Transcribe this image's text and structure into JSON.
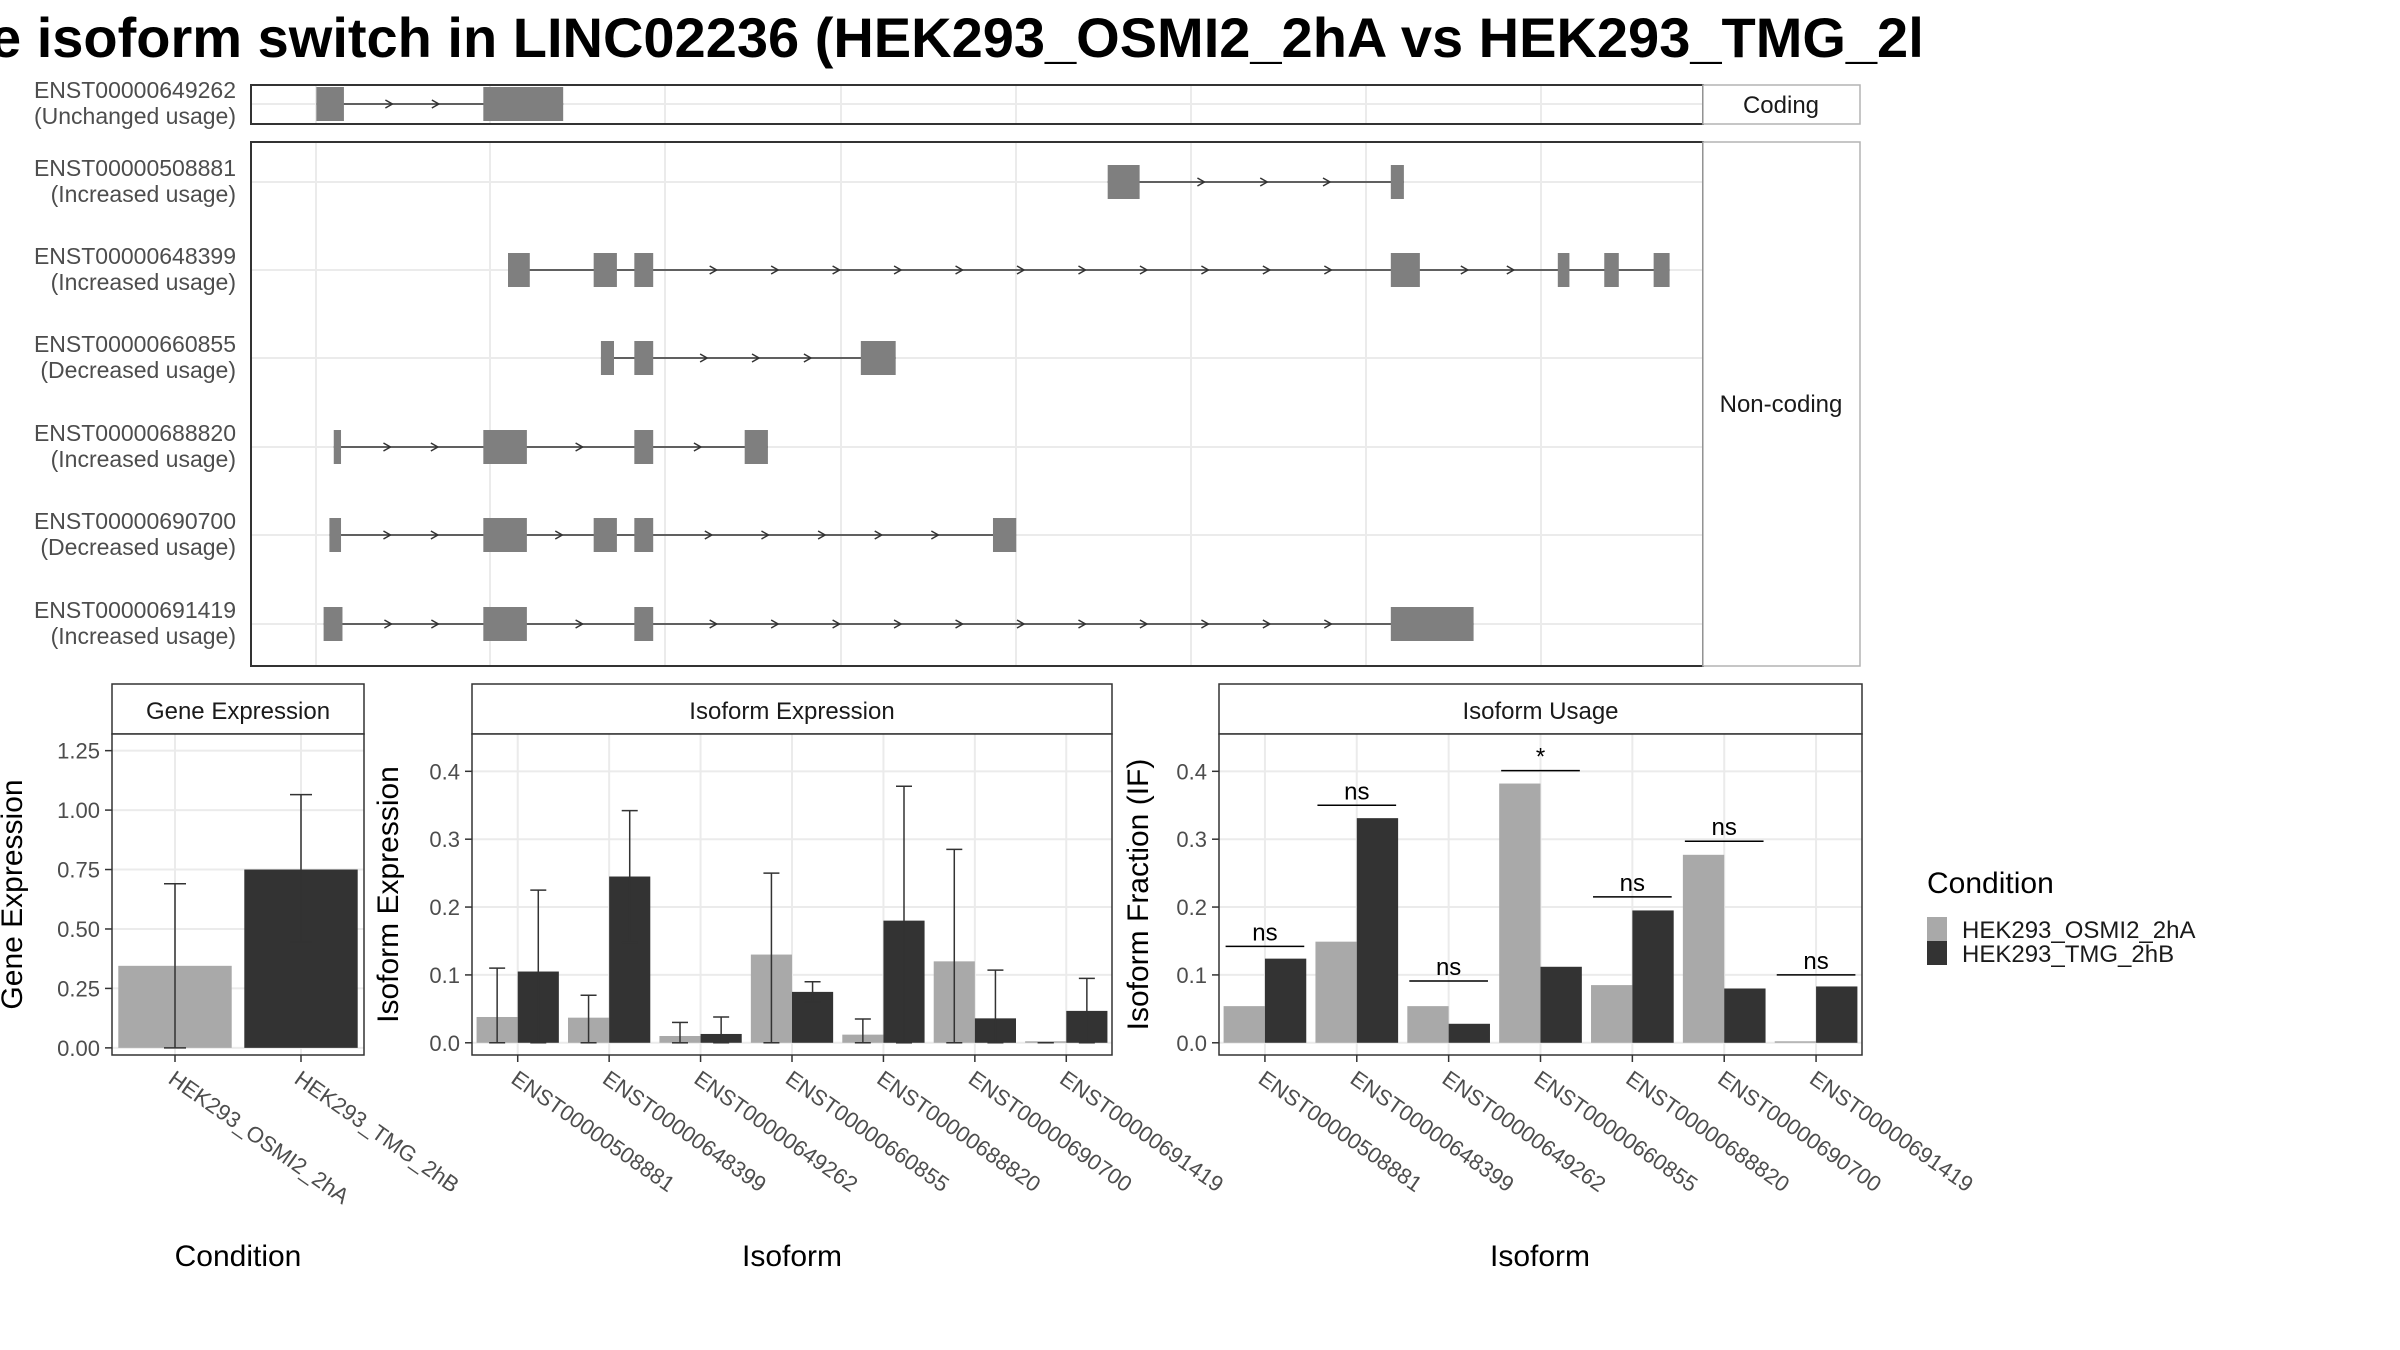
{
  "title": "e isoform switch in LINC02236 (HEK293_OSMI2_2hA vs HEK293_TMG_2l",
  "colors": {
    "cond_a": "#a9a9a9",
    "cond_b": "#333333",
    "exon": "#7f7f7f",
    "strip": "#ffffff",
    "grid": "#ebebeb",
    "frame": "#333333"
  },
  "structure": {
    "coding_label": "Coding",
    "noncoding_label": "Non-coding",
    "coding": [
      {
        "id": "ENST00000649262",
        "usage": "(Unchanged usage)",
        "exons": [
          [
            0.045,
            0.064
          ],
          [
            0.16,
            0.215
          ]
        ],
        "start": 0.045,
        "end": 0.215
      }
    ],
    "noncoding": [
      {
        "id": "ENST00000508881",
        "usage": "(Increased usage)",
        "exons": [
          [
            0.59,
            0.612
          ],
          [
            0.785,
            0.794
          ]
        ],
        "start": 0.59,
        "end": 0.794
      },
      {
        "id": "ENST00000648399",
        "usage": "(Increased usage)",
        "exons": [
          [
            0.177,
            0.192
          ],
          [
            0.236,
            0.252
          ],
          [
            0.264,
            0.277
          ],
          [
            0.785,
            0.805
          ],
          [
            0.9,
            0.908
          ],
          [
            0.932,
            0.942
          ],
          [
            0.966,
            0.977
          ]
        ],
        "start": 0.177,
        "end": 0.977
      },
      {
        "id": "ENST00000660855",
        "usage": "(Decreased usage)",
        "exons": [
          [
            0.241,
            0.25
          ],
          [
            0.264,
            0.277
          ],
          [
            0.42,
            0.444
          ]
        ],
        "start": 0.241,
        "end": 0.444
      },
      {
        "id": "ENST00000688820",
        "usage": "(Increased usage)",
        "exons": [
          [
            0.057,
            0.062
          ],
          [
            0.16,
            0.19
          ],
          [
            0.264,
            0.277
          ],
          [
            0.34,
            0.356
          ]
        ],
        "start": 0.057,
        "end": 0.356
      },
      {
        "id": "ENST00000690700",
        "usage": "(Decreased usage)",
        "exons": [
          [
            0.054,
            0.062
          ],
          [
            0.16,
            0.19
          ],
          [
            0.236,
            0.252
          ],
          [
            0.264,
            0.277
          ],
          [
            0.511,
            0.527
          ]
        ],
        "start": 0.054,
        "end": 0.527
      },
      {
        "id": "ENST00000691419",
        "usage": "(Increased usage)",
        "exons": [
          [
            0.05,
            0.063
          ],
          [
            0.16,
            0.19
          ],
          [
            0.264,
            0.277
          ],
          [
            0.785,
            0.842
          ]
        ],
        "start": 0.05,
        "end": 0.842
      }
    ]
  },
  "chart_data": [
    {
      "type": "bar",
      "title": "Gene Expression",
      "xlabel": "Condition",
      "ylabel": "Gene Expression",
      "ylim": [
        -0.03,
        1.32
      ],
      "yticks": [
        "0.00",
        "0.25",
        "0.50",
        "0.75",
        "1.00",
        "1.25"
      ],
      "categories": [
        "HEK293_OSMI2_2hA",
        "HEK293_TMG_2hB"
      ],
      "values": [
        0.345,
        0.75
      ],
      "errors": [
        [
          0.0,
          0.69
        ],
        [
          0.445,
          1.065
        ]
      ]
    },
    {
      "type": "bar",
      "title": "Isoform Expression",
      "xlabel": "Isoform",
      "ylabel": "Isoform Expression",
      "ylim": [
        -0.018,
        0.455
      ],
      "yticks": [
        "0.0",
        "0.1",
        "0.2",
        "0.3",
        "0.4"
      ],
      "categories": [
        "ENST00000508881",
        "ENST00000648399",
        "ENST00000649262",
        "ENST00000660855",
        "ENST00000688820",
        "ENST00000690700",
        "ENST00000691419"
      ],
      "series": [
        {
          "name": "HEK293_OSMI2_2hA",
          "values": [
            0.038,
            0.037,
            0.01,
            0.13,
            0.012,
            0.12,
            0.0
          ],
          "errors": [
            [
              0.0,
              0.11
            ],
            [
              0.0,
              0.07
            ],
            [
              0.0,
              0.03
            ],
            [
              0.0,
              0.25
            ],
            [
              0.0,
              0.035
            ],
            [
              0.0,
              0.285
            ],
            [
              0.0,
              0.0
            ]
          ]
        },
        {
          "name": "HEK293_TMG_2hB",
          "values": [
            0.105,
            0.245,
            0.013,
            0.075,
            0.18,
            0.036,
            0.047
          ],
          "errors": [
            [
              0.0,
              0.225
            ],
            [
              0.148,
              0.342
            ],
            [
              0.0,
              0.038
            ],
            [
              0.06,
              0.09
            ],
            [
              0.0,
              0.378
            ],
            [
              0.0,
              0.107
            ],
            [
              0.0,
              0.095
            ]
          ]
        }
      ]
    },
    {
      "type": "bar",
      "title": "Isoform Usage",
      "xlabel": "Isoform",
      "ylabel": "Isoform Fraction (IF)",
      "ylim": [
        -0.018,
        0.455
      ],
      "yticks": [
        "0.0",
        "0.1",
        "0.2",
        "0.3",
        "0.4"
      ],
      "categories": [
        "ENST00000508881",
        "ENST00000648399",
        "ENST00000649262",
        "ENST00000660855",
        "ENST00000688820",
        "ENST00000690700",
        "ENST00000691419"
      ],
      "series": [
        {
          "name": "HEK293_OSMI2_2hA",
          "values": [
            0.054,
            0.149,
            0.054,
            0.382,
            0.085,
            0.277,
            0.0
          ]
        },
        {
          "name": "HEK293_TMG_2hB",
          "values": [
            0.124,
            0.331,
            0.028,
            0.112,
            0.195,
            0.08,
            0.083
          ]
        }
      ],
      "significance": [
        "ns",
        "ns",
        "ns",
        "*",
        "ns",
        "ns",
        "ns"
      ],
      "sig_heights": [
        0.142,
        0.35,
        0.091,
        0.401,
        0.215,
        0.297,
        0.1
      ]
    }
  ],
  "legend": {
    "title": "Condition",
    "items": [
      "HEK293_OSMI2_2hA",
      "HEK293_TMG_2hB"
    ]
  }
}
